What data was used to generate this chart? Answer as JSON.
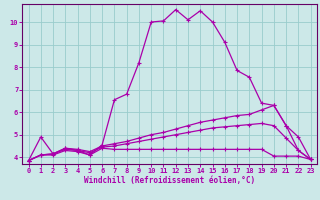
{
  "xlabel": "Windchill (Refroidissement éolien,°C)",
  "bg_color": "#cce8e8",
  "line_color": "#aa00aa",
  "grid_color": "#99cccc",
  "spine_color": "#660066",
  "xlim": [
    -0.5,
    23.5
  ],
  "ylim": [
    3.7,
    10.8
  ],
  "xticks": [
    0,
    1,
    2,
    3,
    4,
    5,
    6,
    7,
    8,
    9,
    10,
    11,
    12,
    13,
    14,
    15,
    16,
    17,
    18,
    19,
    20,
    21,
    22,
    23
  ],
  "yticks": [
    4,
    5,
    6,
    7,
    8,
    9,
    10
  ],
  "lines": [
    {
      "x": [
        0,
        1,
        2,
        3,
        4,
        5,
        6,
        7,
        8,
        9,
        10,
        11,
        12,
        13,
        14,
        15,
        16,
        17,
        18,
        19,
        20,
        21,
        22,
        23
      ],
      "y": [
        3.85,
        4.9,
        4.15,
        4.4,
        4.3,
        4.1,
        4.55,
        6.55,
        6.8,
        8.2,
        10.0,
        10.05,
        10.55,
        10.1,
        10.5,
        10.0,
        9.1,
        7.85,
        7.55,
        6.4,
        6.3,
        5.4,
        4.9,
        3.9
      ]
    },
    {
      "x": [
        0,
        1,
        2,
        3,
        4,
        5,
        6,
        7,
        8,
        9,
        10,
        11,
        12,
        13,
        14,
        15,
        16,
        17,
        18,
        19,
        20,
        21,
        22,
        23
      ],
      "y": [
        3.85,
        4.1,
        4.15,
        4.4,
        4.35,
        4.25,
        4.5,
        4.6,
        4.7,
        4.85,
        5.0,
        5.1,
        5.25,
        5.4,
        5.55,
        5.65,
        5.75,
        5.85,
        5.9,
        6.1,
        6.3,
        5.4,
        4.3,
        3.9
      ]
    },
    {
      "x": [
        0,
        1,
        2,
        3,
        4,
        5,
        6,
        7,
        8,
        9,
        10,
        11,
        12,
        13,
        14,
        15,
        16,
        17,
        18,
        19,
        20,
        21,
        22,
        23
      ],
      "y": [
        3.85,
        4.1,
        4.15,
        4.35,
        4.3,
        4.2,
        4.45,
        4.5,
        4.6,
        4.7,
        4.8,
        4.9,
        5.0,
        5.1,
        5.2,
        5.3,
        5.35,
        5.4,
        5.45,
        5.5,
        5.4,
        4.85,
        4.3,
        3.9
      ]
    },
    {
      "x": [
        0,
        1,
        2,
        3,
        4,
        5,
        6,
        7,
        8,
        9,
        10,
        11,
        12,
        13,
        14,
        15,
        16,
        17,
        18,
        19,
        20,
        21,
        22,
        23
      ],
      "y": [
        3.85,
        4.1,
        4.1,
        4.3,
        4.25,
        4.1,
        4.4,
        4.35,
        4.35,
        4.35,
        4.35,
        4.35,
        4.35,
        4.35,
        4.35,
        4.35,
        4.35,
        4.35,
        4.35,
        4.35,
        4.05,
        4.05,
        4.05,
        3.9
      ]
    }
  ]
}
